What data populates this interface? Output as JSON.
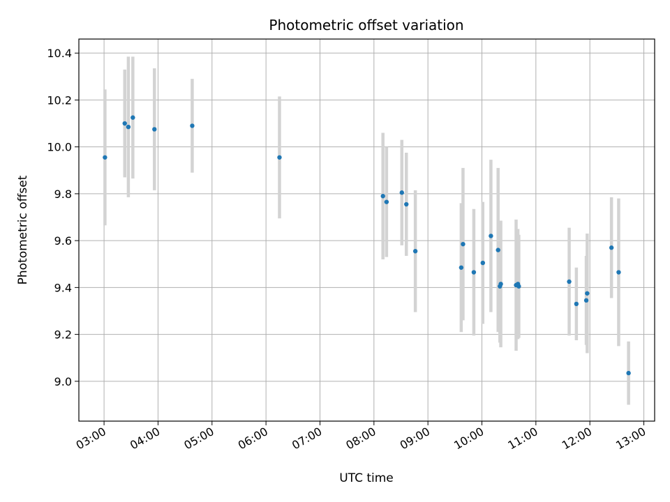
{
  "chart_data": {
    "type": "scatter",
    "title": "Photometric offset variation",
    "xlabel": "UTC time",
    "ylabel": "Photometric offset",
    "x_axis_format": "HH:MM",
    "xlim": [
      "02:32",
      "13:12"
    ],
    "ylim": [
      8.83,
      10.46
    ],
    "x_ticks": [
      "03:00",
      "04:00",
      "05:00",
      "06:00",
      "07:00",
      "08:00",
      "09:00",
      "10:00",
      "11:00",
      "12:00",
      "13:00"
    ],
    "y_ticks": [
      "9.0",
      "9.2",
      "9.4",
      "9.6",
      "9.8",
      "10.0",
      "10.2",
      "10.4"
    ],
    "grid": true,
    "legend": "none",
    "colors": {
      "point": "#1f77b4",
      "errorbar": "#d3d3d3",
      "grid": "#b0b0b0"
    },
    "series": [
      {
        "points": [
          {
            "t": "03:01",
            "y": 9.955,
            "err": 0.29
          },
          {
            "t": "03:23",
            "y": 10.1,
            "err": 0.23
          },
          {
            "t": "03:27",
            "y": 10.085,
            "err": 0.3
          },
          {
            "t": "03:32",
            "y": 10.125,
            "err": 0.26
          },
          {
            "t": "03:56",
            "y": 10.075,
            "err": 0.26
          },
          {
            "t": "04:38",
            "y": 10.09,
            "err": 0.2
          },
          {
            "t": "06:15",
            "y": 9.955,
            "err": 0.26
          },
          {
            "t": "08:10",
            "y": 9.79,
            "err": 0.27
          },
          {
            "t": "08:14",
            "y": 9.765,
            "err": 0.235
          },
          {
            "t": "08:31",
            "y": 9.805,
            "err": 0.225
          },
          {
            "t": "08:36",
            "y": 9.755,
            "err": 0.22
          },
          {
            "t": "08:46",
            "y": 9.555,
            "err": 0.26
          },
          {
            "t": "09:37",
            "y": 9.485,
            "err": 0.275
          },
          {
            "t": "09:39",
            "y": 9.585,
            "err": 0.325
          },
          {
            "t": "09:51",
            "y": 9.465,
            "err": 0.27
          },
          {
            "t": "10:01",
            "y": 9.505,
            "err": 0.26
          },
          {
            "t": "10:10",
            "y": 9.62,
            "err": 0.325
          },
          {
            "t": "10:18",
            "y": 9.56,
            "err": 0.35
          },
          {
            "t": "10:20",
            "y": 9.405,
            "err": 0.24
          },
          {
            "t": "10:21",
            "y": 9.415,
            "err": 0.27
          },
          {
            "t": "10:38",
            "y": 9.41,
            "err": 0.28
          },
          {
            "t": "10:40",
            "y": 9.415,
            "err": 0.235
          },
          {
            "t": "10:41",
            "y": 9.405,
            "err": 0.22
          },
          {
            "t": "11:37",
            "y": 9.425,
            "err": 0.23
          },
          {
            "t": "11:45",
            "y": 9.33,
            "err": 0.155
          },
          {
            "t": "11:56",
            "y": 9.345,
            "err": 0.19
          },
          {
            "t": "11:57",
            "y": 9.375,
            "err": 0.255
          },
          {
            "t": "12:24",
            "y": 9.57,
            "err": 0.215
          },
          {
            "t": "12:32",
            "y": 9.465,
            "err": 0.315
          },
          {
            "t": "12:43",
            "y": 9.035,
            "err": 0.135
          }
        ]
      }
    ]
  }
}
